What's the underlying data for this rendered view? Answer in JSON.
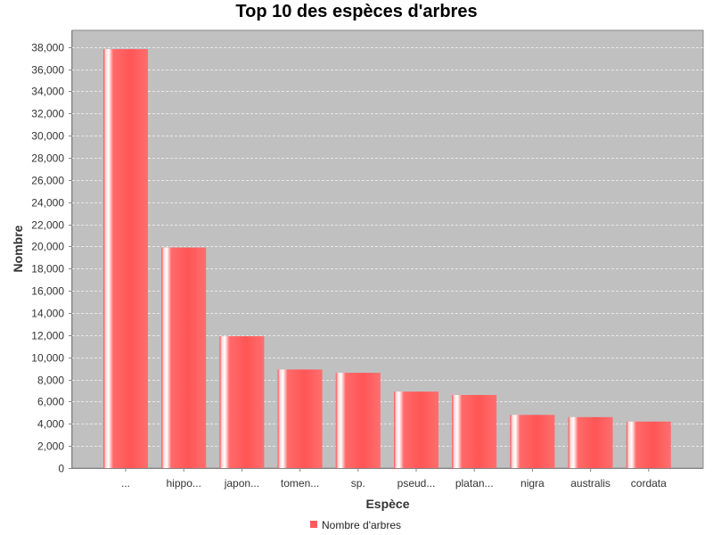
{
  "chart_data": {
    "type": "bar",
    "title": "Top 10 des espèces d'arbres",
    "xlabel": "Espèce",
    "ylabel": "Nombre",
    "categories": [
      "...",
      "hippo...",
      "japon...",
      "tomen...",
      "sp.",
      "pseud...",
      "platan...",
      "nigra",
      "australis",
      "cordata"
    ],
    "series": [
      {
        "name": "Nombre d'arbres",
        "values": [
          37800,
          19900,
          11900,
          8900,
          8600,
          6900,
          6600,
          4800,
          4600,
          4200
        ]
      }
    ],
    "ylim": [
      0,
      39500
    ],
    "yticks": [
      0,
      2000,
      4000,
      6000,
      8000,
      10000,
      12000,
      14000,
      16000,
      18000,
      20000,
      22000,
      24000,
      26000,
      28000,
      30000,
      32000,
      34000,
      36000,
      38000
    ],
    "ytick_labels": [
      "0",
      "2,000",
      "4,000",
      "6,000",
      "8,000",
      "10,000",
      "12,000",
      "14,000",
      "16,000",
      "18,000",
      "20,000",
      "22,000",
      "24,000",
      "26,000",
      "28,000",
      "30,000",
      "32,000",
      "34,000",
      "36,000",
      "38,000"
    ],
    "grid": true,
    "legend_position": "bottom",
    "colors": {
      "bar": "#ff5a5a",
      "plot_background": "#c0c0c0",
      "grid": "#e8e8e8"
    }
  }
}
